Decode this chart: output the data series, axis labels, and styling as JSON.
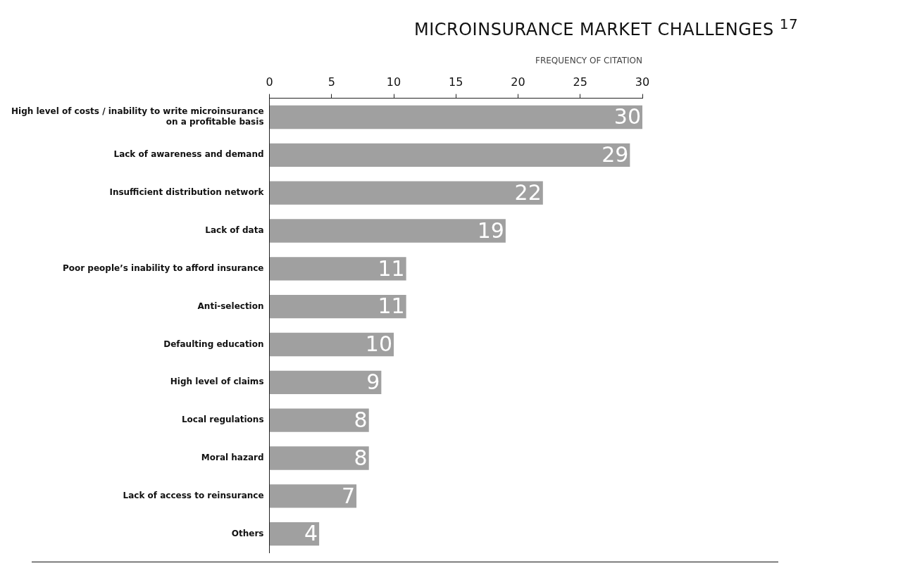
{
  "chart_data": {
    "type": "bar",
    "orientation": "horizontal",
    "title": "MICROINSURANCE MARKET CHALLENGES $^{17}$",
    "xlabel": "FREQUENCY OF CITATION",
    "categories": [
      "High level of costs / inability to write microinsurance on a profitable basis",
      "Lack of awareness and demand",
      "Insufficient distribution network",
      "Lack of data",
      "Poor people’s inability to afford insurance",
      "Anti-selection",
      "Defaulting education",
      "High level of claims",
      "Local regulations",
      "Moral hazard",
      "Lack of access to reinsurance",
      "Others"
    ],
    "values": [
      30,
      29,
      22,
      19,
      11,
      11,
      10,
      9,
      8,
      8,
      7,
      4
    ],
    "color": "#a0a0a0",
    "xlim": [
      0,
      30
    ],
    "xticks": [
      0,
      5,
      10,
      15,
      20,
      25,
      30
    ],
    "grid": false,
    "legend": false,
    "data_labels": true
  }
}
